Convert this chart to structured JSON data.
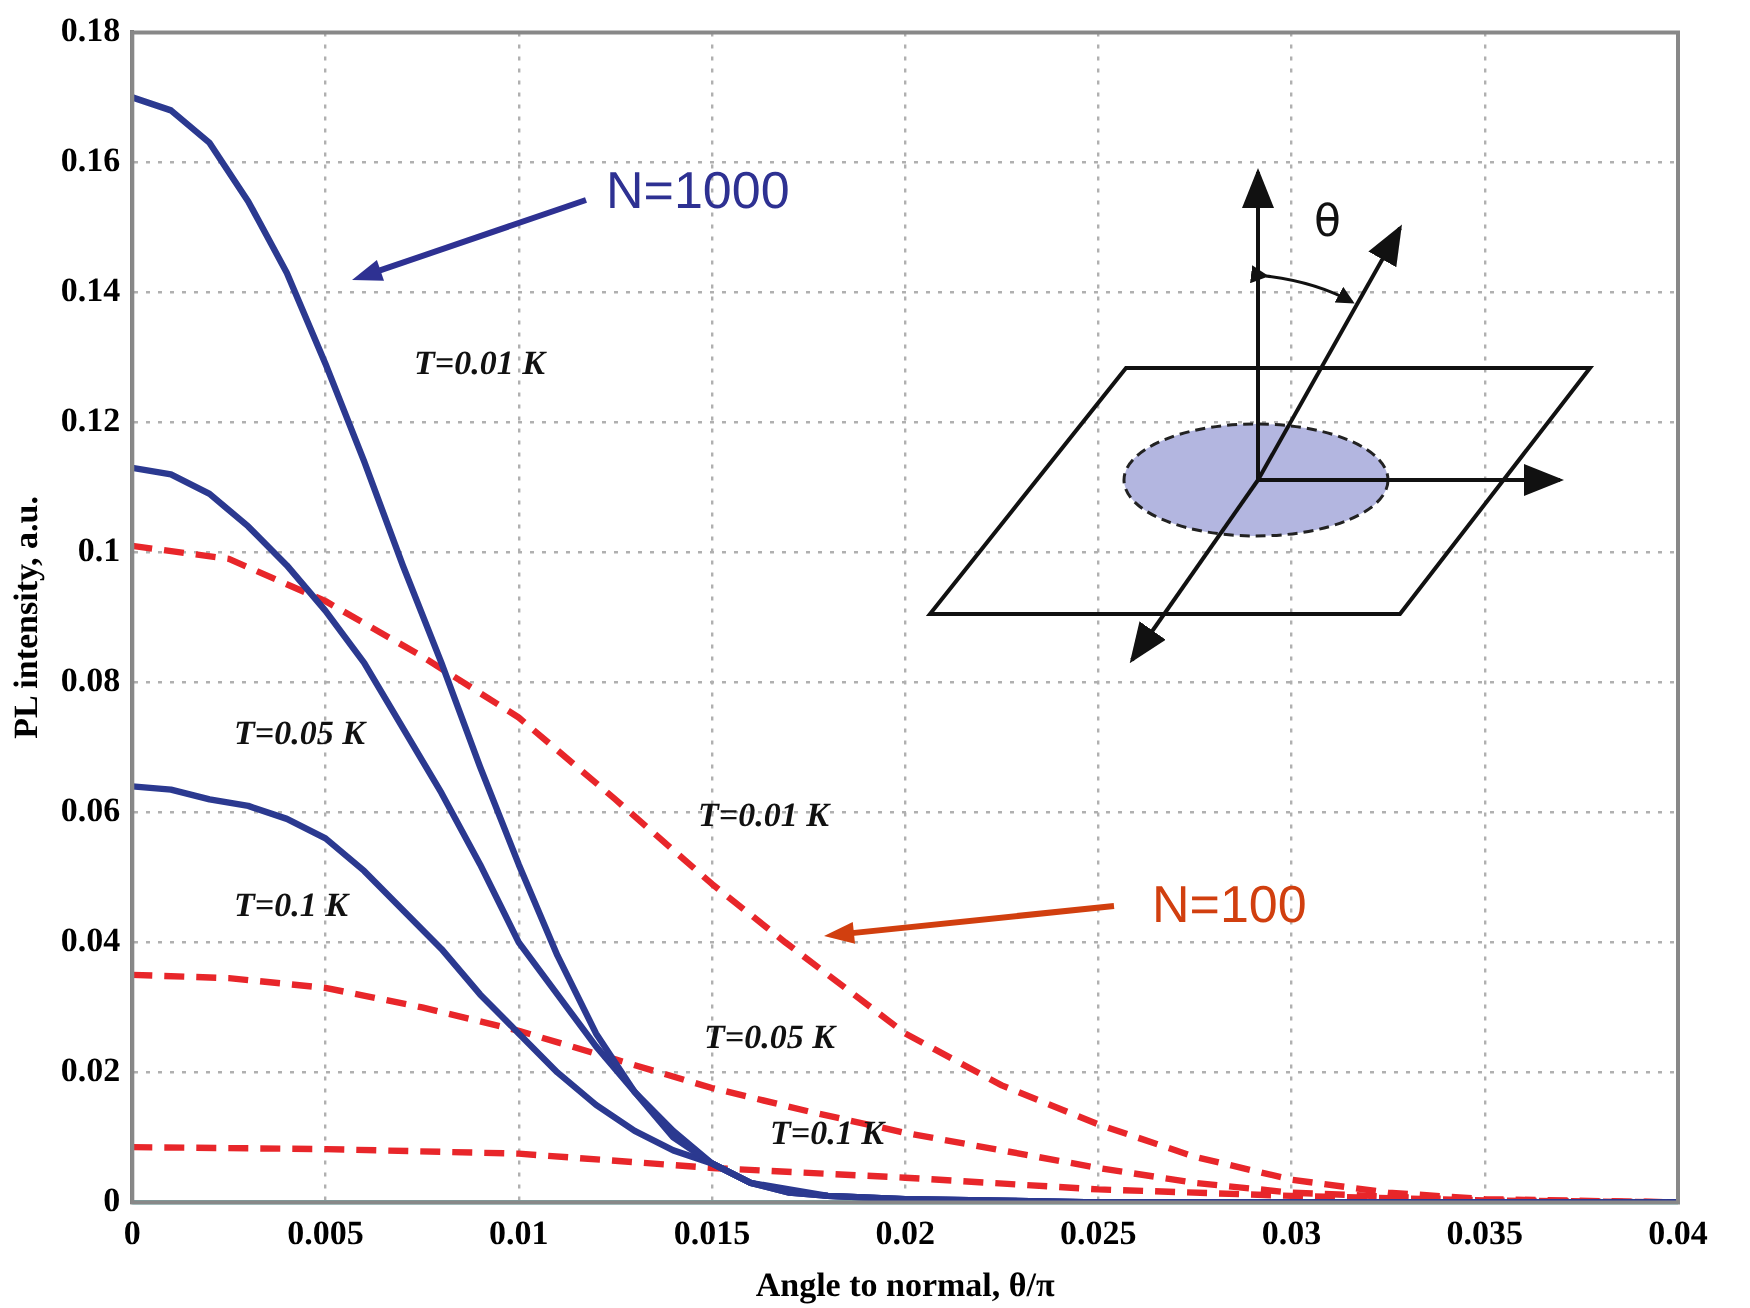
{
  "chart_data": {
    "type": "line",
    "xlabel": "Angle to normal, θ/π",
    "ylabel": "PL intensity, a.u.",
    "xlim": [
      0,
      0.04
    ],
    "xticks": [
      0,
      0.005,
      0.01,
      0.015,
      0.02,
      0.025,
      0.03,
      0.035,
      0.04
    ],
    "ylim": [
      0,
      0.18
    ],
    "yticks": [
      0,
      0.02,
      0.04,
      0.06,
      0.08,
      0.1,
      0.12,
      0.14,
      0.16,
      0.18
    ],
    "grid": true,
    "marker": "none",
    "ref_lines": [
      {
        "axis": "y",
        "value": 0,
        "color": "#7fd6d6"
      }
    ],
    "series": [
      {
        "color": "#2b3990",
        "line_style": "solid",
        "x": [
          0,
          0.001,
          0.002,
          0.003,
          0.004,
          0.005,
          0.006,
          0.007,
          0.008,
          0.009,
          0.01,
          0.011,
          0.012,
          0.013,
          0.014,
          0.015,
          0.016,
          0.017,
          0.018,
          0.02,
          0.025,
          0.03,
          0.035,
          0.04
        ],
        "values": [
          0.17,
          0.168,
          0.163,
          0.154,
          0.143,
          0.129,
          0.114,
          0.098,
          0.083,
          0.067,
          0.052,
          0.038,
          0.026,
          0.017,
          0.01,
          0.006,
          0.003,
          0.0015,
          0.001,
          0.0005,
          0,
          0,
          0,
          0
        ]
      },
      {
        "color": "#2b3990",
        "line_style": "solid",
        "x": [
          0,
          0.001,
          0.002,
          0.003,
          0.004,
          0.005,
          0.006,
          0.007,
          0.008,
          0.009,
          0.01,
          0.011,
          0.012,
          0.013,
          0.014,
          0.015,
          0.016,
          0.017,
          0.018,
          0.02,
          0.025,
          0.03,
          0.035,
          0.04
        ],
        "values": [
          0.113,
          0.112,
          0.109,
          0.104,
          0.098,
          0.091,
          0.083,
          0.073,
          0.063,
          0.052,
          0.04,
          0.032,
          0.024,
          0.017,
          0.011,
          0.006,
          0.003,
          0.0015,
          0.001,
          0.0005,
          0,
          0,
          0,
          0
        ]
      },
      {
        "color": "#2b3990",
        "line_style": "solid",
        "x": [
          0,
          0.001,
          0.002,
          0.003,
          0.004,
          0.005,
          0.006,
          0.007,
          0.008,
          0.009,
          0.01,
          0.011,
          0.012,
          0.013,
          0.014,
          0.015,
          0.016,
          0.017,
          0.018,
          0.02,
          0.025,
          0.03,
          0.035,
          0.04
        ],
        "values": [
          0.064,
          0.0635,
          0.062,
          0.061,
          0.059,
          0.056,
          0.051,
          0.045,
          0.039,
          0.032,
          0.026,
          0.02,
          0.015,
          0.011,
          0.008,
          0.006,
          0.003,
          0.002,
          0.001,
          0.0005,
          0,
          0,
          0,
          0
        ]
      },
      {
        "color": "#e8262a",
        "line_style": "dashed",
        "x": [
          0,
          0.0025,
          0.005,
          0.0075,
          0.01,
          0.0125,
          0.015,
          0.0169,
          0.02,
          0.0225,
          0.025,
          0.0275,
          0.03,
          0.0325,
          0.035,
          0.04
        ],
        "values": [
          0.101,
          0.099,
          0.0925,
          0.084,
          0.0746,
          0.062,
          0.049,
          0.04,
          0.026,
          0.018,
          0.012,
          0.007,
          0.0035,
          0.0015,
          0.0005,
          0
        ]
      },
      {
        "color": "#e8262a",
        "line_style": "dashed",
        "x": [
          0,
          0.0025,
          0.005,
          0.0075,
          0.01,
          0.0125,
          0.015,
          0.0175,
          0.02,
          0.0225,
          0.025,
          0.0275,
          0.03,
          0.035,
          0.04
        ],
        "values": [
          0.035,
          0.0345,
          0.033,
          0.03,
          0.0264,
          0.022,
          0.0176,
          0.014,
          0.0107,
          0.008,
          0.0053,
          0.003,
          0.0015,
          0.0003,
          0
        ]
      },
      {
        "color": "#e8262a",
        "line_style": "dashed",
        "x": [
          0,
          0.005,
          0.01,
          0.015,
          0.02,
          0.025,
          0.03,
          0.035,
          0.04
        ],
        "values": [
          0.0085,
          0.0082,
          0.0075,
          0.0053,
          0.0038,
          0.002,
          0.001,
          0.0003,
          0
        ]
      }
    ],
    "annotations": [
      "N=1000",
      "N=100",
      "T=0.01 K",
      "T=0.05 K",
      "T=0.1 K",
      "T=0.01 K",
      "T=0.05 K",
      "T=0.1 K",
      "θ"
    ]
  }
}
